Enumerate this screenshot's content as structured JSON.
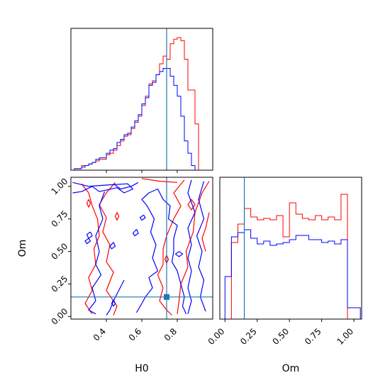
{
  "chart_data": [
    {
      "type": "histogram",
      "panel": "H0-marginal",
      "xlim": [
        0.2,
        1.0
      ],
      "truth": 0.74,
      "bin_edges": [
        0.2,
        0.22,
        0.24,
        0.26,
        0.28,
        0.3,
        0.32,
        0.34,
        0.36,
        0.38,
        0.4,
        0.42,
        0.44,
        0.46,
        0.48,
        0.5,
        0.52,
        0.54,
        0.56,
        0.58,
        0.6,
        0.62,
        0.64,
        0.66,
        0.68,
        0.7,
        0.72,
        0.74,
        0.76,
        0.78,
        0.8,
        0.82,
        0.84,
        0.86,
        0.88,
        0.9,
        0.92,
        0.94,
        0.96,
        0.98,
        1.0
      ],
      "series": [
        {
          "color": "#ff0000",
          "values": [
            0.0,
            0.01,
            0.01,
            0.03,
            0.03,
            0.04,
            0.05,
            0.06,
            0.07,
            0.07,
            0.1,
            0.11,
            0.13,
            0.16,
            0.19,
            0.22,
            0.23,
            0.27,
            0.31,
            0.35,
            0.42,
            0.48,
            0.56,
            0.58,
            0.62,
            0.69,
            0.74,
            0.72,
            0.82,
            0.85,
            0.86,
            0.84,
            0.72,
            0.52,
            0.52,
            0.3,
            0.0,
            0.0,
            0.0,
            0.0
          ]
        },
        {
          "color": "#0000ff",
          "values": [
            0.0,
            0.01,
            0.01,
            0.02,
            0.03,
            0.04,
            0.05,
            0.07,
            0.08,
            0.08,
            0.11,
            0.13,
            0.14,
            0.18,
            0.2,
            0.23,
            0.24,
            0.28,
            0.32,
            0.36,
            0.43,
            0.47,
            0.55,
            0.57,
            0.62,
            0.64,
            0.66,
            0.66,
            0.61,
            0.55,
            0.48,
            0.35,
            0.19,
            0.11,
            0.03,
            0.0,
            0.0,
            0.0,
            0.0,
            0.0
          ]
        }
      ]
    },
    {
      "type": "contour",
      "panel": "H0-Om-joint",
      "xlabel": "H0",
      "ylabel": "Om",
      "xlim": [
        0.2,
        1.0
      ],
      "ylim": [
        -0.02,
        1.07
      ],
      "x_ticks": [
        "0.4",
        "0.6",
        "0.8"
      ],
      "y_ticks": [
        "0.00",
        "0.25",
        "0.50",
        "0.75",
        "1.00"
      ],
      "truth": {
        "x": 0.74,
        "y": 0.15
      },
      "series": [
        {
          "color": "#ff0000",
          "contours": [
            [
              [
                0.26,
                1.02
              ],
              [
                0.3,
                0.95
              ],
              [
                0.32,
                0.85
              ],
              [
                0.35,
                0.75
              ],
              [
                0.36,
                0.62
              ],
              [
                0.33,
                0.52
              ],
              [
                0.34,
                0.4
              ],
              [
                0.3,
                0.3
              ],
              [
                0.32,
                0.2
              ],
              [
                0.28,
                0.1
              ],
              [
                0.32,
                0.02
              ]
            ],
            [
              [
                0.45,
                1.03
              ],
              [
                0.4,
                0.95
              ],
              [
                0.36,
                0.86
              ],
              [
                0.4,
                0.76
              ],
              [
                0.38,
                0.65
              ],
              [
                0.42,
                0.55
              ],
              [
                0.4,
                0.42
              ],
              [
                0.44,
                0.34
              ],
              [
                0.4,
                0.2
              ],
              [
                0.46,
                0.08
              ],
              [
                0.44,
                0.01
              ]
            ],
            [
              [
                0.6,
                1.06
              ],
              [
                0.7,
                1.04
              ],
              [
                0.8,
                1.03
              ]
            ],
            [
              [
                0.84,
                1.05
              ],
              [
                0.78,
                0.95
              ],
              [
                0.82,
                0.85
              ],
              [
                0.78,
                0.75
              ],
              [
                0.74,
                0.62
              ],
              [
                0.72,
                0.52
              ],
              [
                0.72,
                0.4
              ],
              [
                0.69,
                0.32
              ],
              [
                0.72,
                0.22
              ],
              [
                0.7,
                0.12
              ],
              [
                0.74,
                0.05
              ],
              [
                0.77,
                0.01
              ]
            ],
            [
              [
                0.98,
                1.04
              ],
              [
                0.94,
                0.95
              ],
              [
                0.9,
                0.8
              ],
              [
                0.89,
                0.65
              ],
              [
                0.85,
                0.5
              ],
              [
                0.86,
                0.38
              ],
              [
                0.82,
                0.25
              ],
              [
                0.81,
                0.12
              ],
              [
                0.8,
                0.02
              ]
            ],
            [
              [
                0.98,
                0.8
              ],
              [
                0.96,
                0.68
              ],
              [
                0.94,
                0.6
              ],
              [
                0.96,
                0.5
              ]
            ],
            [
              [
                0.86,
                0.86
              ],
              [
                0.88,
                0.9
              ],
              [
                0.9,
                0.86
              ],
              [
                0.88,
                0.82
              ],
              [
                0.86,
                0.86
              ]
            ],
            [
              [
                0.46,
                0.8
              ],
              [
                0.47,
                0.77
              ],
              [
                0.46,
                0.74
              ],
              [
                0.45,
                0.77
              ],
              [
                0.46,
                0.8
              ]
            ],
            [
              [
                0.3,
                0.9
              ],
              [
                0.31,
                0.87
              ],
              [
                0.3,
                0.84
              ],
              [
                0.29,
                0.87
              ],
              [
                0.3,
                0.9
              ]
            ],
            [
              [
                0.74,
                0.47
              ],
              [
                0.75,
                0.44
              ],
              [
                0.74,
                0.41
              ],
              [
                0.73,
                0.44
              ],
              [
                0.74,
                0.47
              ]
            ]
          ]
        },
        {
          "color": "#0000ff",
          "contours": [
            [
              [
                0.21,
                1.03
              ],
              [
                0.3,
                1.0
              ],
              [
                0.4,
                1.01
              ],
              [
                0.52,
                1.02
              ],
              [
                0.55,
                0.98
              ],
              [
                0.5,
                0.95
              ],
              [
                0.46,
                0.99
              ],
              [
                0.36,
                0.96
              ],
              [
                0.32,
                1.0
              ],
              [
                0.26,
                0.96
              ],
              [
                0.21,
                0.95
              ]
            ],
            [
              [
                0.39,
                0.96
              ],
              [
                0.36,
                0.85
              ],
              [
                0.38,
                0.75
              ],
              [
                0.34,
                0.62
              ],
              [
                0.36,
                0.5
              ],
              [
                0.34,
                0.4
              ],
              [
                0.37,
                0.32
              ],
              [
                0.32,
                0.22
              ],
              [
                0.34,
                0.12
              ],
              [
                0.3,
                0.05
              ],
              [
                0.34,
                0.02
              ]
            ],
            [
              [
                0.5,
                0.28
              ],
              [
                0.47,
                0.2
              ],
              [
                0.44,
                0.12
              ],
              [
                0.42,
                0.05
              ],
              [
                0.4,
                0.01
              ]
            ],
            [
              [
                0.57,
                0.03
              ],
              [
                0.6,
                0.1
              ],
              [
                0.62,
                0.15
              ],
              [
                0.66,
                0.22
              ],
              [
                0.64,
                0.3
              ],
              [
                0.69,
                0.35
              ]
            ],
            [
              [
                0.69,
                0.35
              ],
              [
                0.66,
                0.45
              ],
              [
                0.68,
                0.55
              ],
              [
                0.65,
                0.65
              ],
              [
                0.67,
                0.75
              ],
              [
                0.63,
                0.85
              ],
              [
                0.6,
                0.9
              ],
              [
                0.64,
                0.95
              ],
              [
                0.69,
                0.98
              ],
              [
                0.72,
                0.9
              ]
            ],
            [
              [
                0.72,
                0.9
              ],
              [
                0.76,
                0.85
              ],
              [
                0.75,
                0.75
              ],
              [
                0.8,
                0.7
              ],
              [
                0.78,
                0.6
              ],
              [
                0.78,
                0.5
              ],
              [
                0.77,
                0.42
              ],
              [
                0.8,
                0.35
              ],
              [
                0.82,
                0.25
              ],
              [
                0.84,
                0.15
              ],
              [
                0.83,
                0.08
              ],
              [
                0.85,
                0.02
              ]
            ],
            [
              [
                0.88,
                1.05
              ],
              [
                0.86,
                0.95
              ],
              [
                0.9,
                0.8
              ],
              [
                0.86,
                0.68
              ],
              [
                0.88,
                0.55
              ],
              [
                0.86,
                0.45
              ],
              [
                0.88,
                0.35
              ],
              [
                0.86,
                0.22
              ],
              [
                0.88,
                0.12
              ],
              [
                0.86,
                0.02
              ]
            ],
            [
              [
                0.95,
                1.04
              ],
              [
                0.92,
                0.9
              ],
              [
                0.95,
                0.75
              ],
              [
                0.91,
                0.62
              ],
              [
                0.94,
                0.5
              ],
              [
                0.92,
                0.38
              ],
              [
                0.95,
                0.28
              ],
              [
                0.93,
                0.15
              ],
              [
                0.96,
                0.04
              ]
            ],
            [
              [
                0.44,
                1.02
              ],
              [
                0.48,
                0.98
              ],
              [
                0.54,
                1.0
              ],
              [
                0.58,
                1.03
              ]
            ],
            [
              [
                0.3,
                0.6
              ],
              [
                0.31,
                0.58
              ],
              [
                0.29,
                0.56
              ],
              [
                0.28,
                0.58
              ],
              [
                0.3,
                0.6
              ]
            ],
            [
              [
                0.57,
                0.67
              ],
              [
                0.58,
                0.64
              ],
              [
                0.56,
                0.62
              ],
              [
                0.55,
                0.64
              ],
              [
                0.57,
                0.67
              ]
            ],
            [
              [
                0.44,
                0.57
              ],
              [
                0.45,
                0.54
              ],
              [
                0.43,
                0.52
              ],
              [
                0.42,
                0.54
              ],
              [
                0.44,
                0.57
              ]
            ],
            [
              [
                0.31,
                0.65
              ],
              [
                0.32,
                0.62
              ],
              [
                0.3,
                0.6
              ],
              [
                0.29,
                0.63
              ],
              [
                0.31,
                0.65
              ]
            ],
            [
              [
                0.61,
                0.78
              ],
              [
                0.62,
                0.76
              ],
              [
                0.6,
                0.74
              ],
              [
                0.59,
                0.76
              ],
              [
                0.61,
                0.78
              ]
            ],
            [
              [
                0.44,
                0.13
              ],
              [
                0.45,
                0.1
              ],
              [
                0.44,
                0.08
              ],
              [
                0.43,
                0.1
              ],
              [
                0.44,
                0.13
              ]
            ],
            [
              [
                0.81,
                0.5
              ],
              [
                0.83,
                0.48
              ],
              [
                0.81,
                0.46
              ],
              [
                0.79,
                0.48
              ],
              [
                0.81,
                0.5
              ]
            ]
          ]
        }
      ]
    },
    {
      "type": "histogram",
      "panel": "Om-marginal",
      "xlabel": "Om",
      "xlim": [
        -0.04,
        1.06
      ],
      "x_ticks": [
        "0.00",
        "0.25",
        "0.50",
        "0.75",
        "1.00"
      ],
      "truth": 0.15,
      "bin_edges": [
        0.0,
        0.05,
        0.1,
        0.15,
        0.2,
        0.25,
        0.3,
        0.35,
        0.4,
        0.45,
        0.5,
        0.55,
        0.6,
        0.65,
        0.7,
        0.75,
        0.8,
        0.85,
        0.9,
        0.95,
        1.0,
        1.05
      ],
      "series": [
        {
          "color": "#ff0000",
          "values": [
            0.0,
            0.54,
            0.67,
            0.78,
            0.72,
            0.7,
            0.71,
            0.7,
            0.73,
            0.58,
            0.82,
            0.74,
            0.71,
            0.7,
            0.73,
            0.7,
            0.72,
            0.7,
            0.88,
            0.0,
            0.0
          ]
        },
        {
          "color": "#0000ff",
          "values": [
            0.3,
            0.58,
            0.61,
            0.63,
            0.57,
            0.53,
            0.55,
            0.52,
            0.53,
            0.54,
            0.56,
            0.59,
            0.59,
            0.56,
            0.56,
            0.54,
            0.55,
            0.53,
            0.56,
            0.08,
            0.08
          ]
        }
      ]
    }
  ]
}
